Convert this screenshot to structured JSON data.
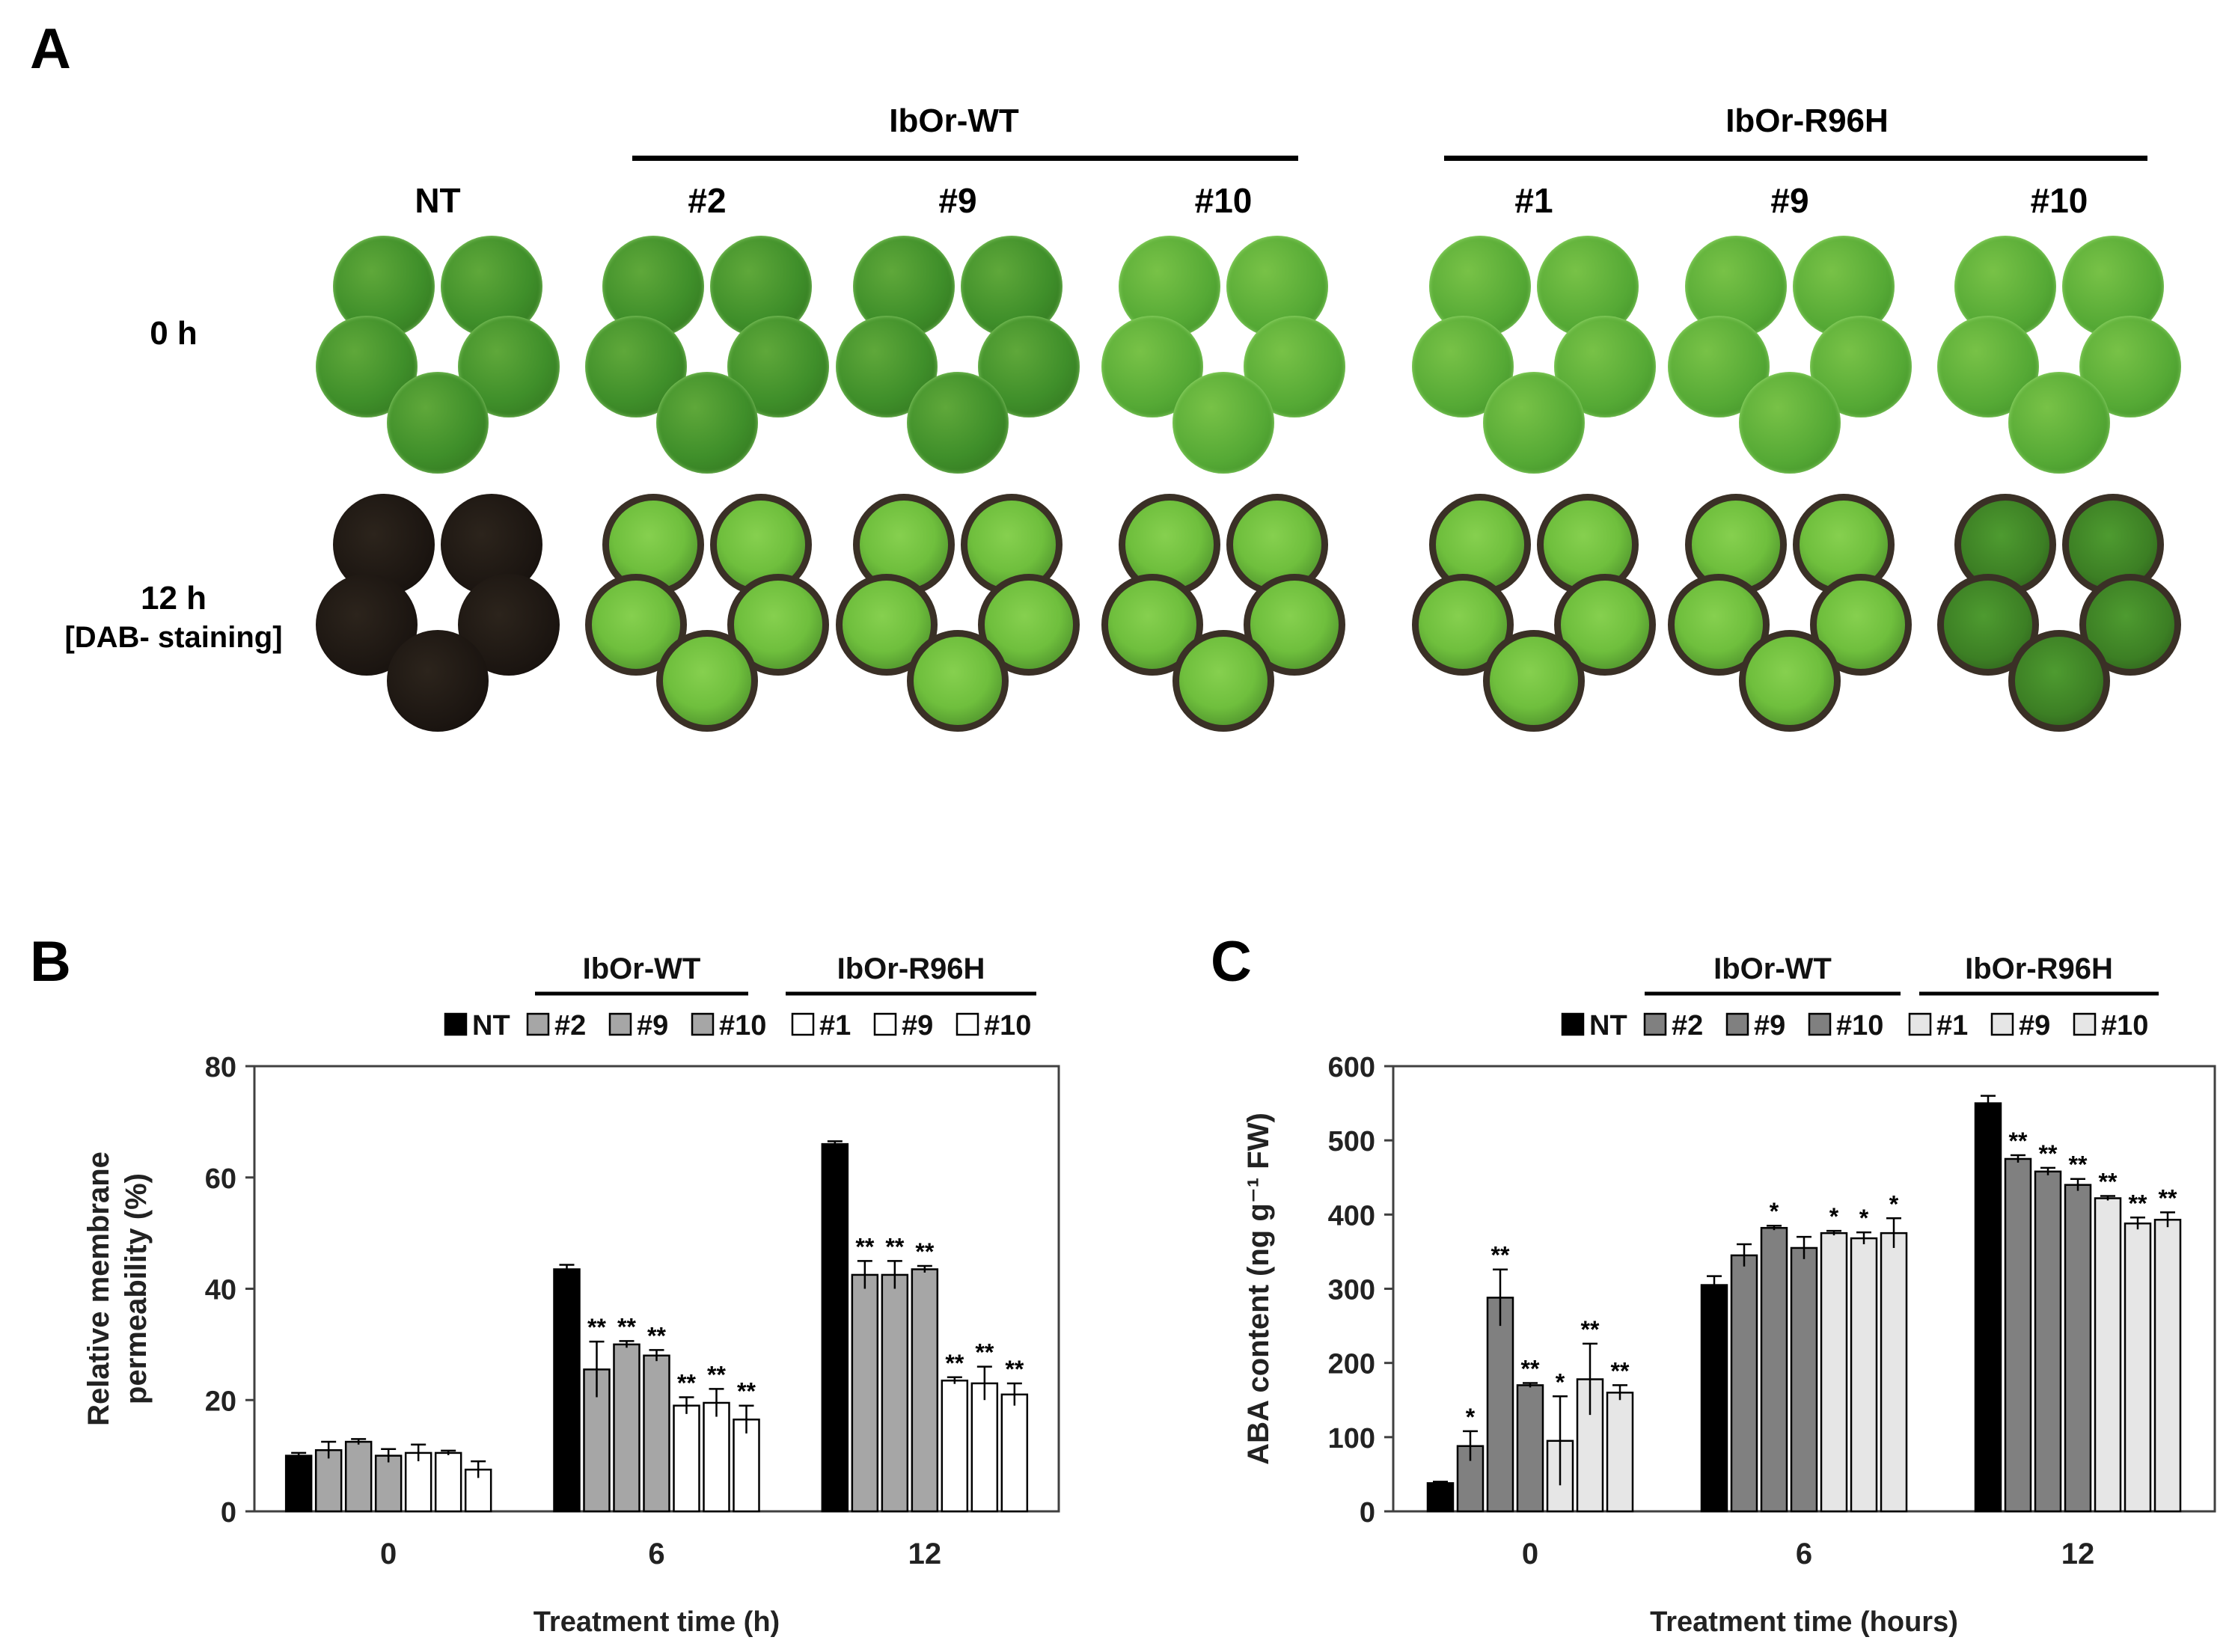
{
  "panel_a": {
    "label": "A",
    "group_wt": "IbOr-WT",
    "group_r96h": "IbOr-R96H",
    "columns": [
      "NT",
      "#2",
      "#9",
      "#10",
      "#1",
      "#9",
      "#10"
    ],
    "row_0h": "0 h",
    "row_12h": "12 h",
    "row_12h_sub": "[DAB- staining]"
  },
  "colors": {
    "NT": "#000000",
    "WT_B": "#a6a6a6",
    "R96H_B": "#ffffff",
    "WT_C": "#808080",
    "R96H_C": "#e6e6e6"
  },
  "chart_data": [
    {
      "type": "bar",
      "panel": "B",
      "group_labels": [
        "IbOr-WT",
        "IbOr-R96H"
      ],
      "legend": [
        "NT",
        "#2",
        "#9",
        "#10",
        "#1",
        "#9",
        "#10"
      ],
      "categories": [
        "0",
        "6",
        "12"
      ],
      "xlabel": "Treatment time (h)",
      "ylabel": "Relative membrane permeability (%)",
      "ylim": [
        0,
        80
      ],
      "yticks": [
        "0",
        "20",
        "40",
        "60",
        "80"
      ],
      "series": [
        {
          "name": "NT",
          "group": "NT",
          "values": [
            10,
            43.5,
            66
          ],
          "errors": [
            0.5,
            0.8,
            0.5
          ],
          "marks": [
            "",
            "",
            ""
          ]
        },
        {
          "name": "#2",
          "group": "WT",
          "values": [
            11,
            25.5,
            42.5
          ],
          "errors": [
            1.5,
            5,
            2.5
          ],
          "marks": [
            "",
            "**",
            "**"
          ]
        },
        {
          "name": "#9",
          "group": "WT",
          "values": [
            12.5,
            30,
            42.5
          ],
          "errors": [
            0.5,
            0.6,
            2.5
          ],
          "marks": [
            "",
            "**",
            "**"
          ]
        },
        {
          "name": "#10",
          "group": "WT",
          "values": [
            10,
            28,
            43.5
          ],
          "errors": [
            1.2,
            1,
            0.6
          ],
          "marks": [
            "",
            "**",
            "**"
          ]
        },
        {
          "name": "#1",
          "group": "R96H",
          "values": [
            10.5,
            19,
            23.5
          ],
          "errors": [
            1.5,
            1.5,
            0.6
          ],
          "marks": [
            "",
            "**",
            "**"
          ]
        },
        {
          "name": "#9",
          "group": "R96H",
          "values": [
            10.5,
            19.5,
            23
          ],
          "errors": [
            0.4,
            2.5,
            3
          ],
          "marks": [
            "",
            "**",
            "**"
          ]
        },
        {
          "name": "#10",
          "group": "R96H",
          "values": [
            7.5,
            16.5,
            21
          ],
          "errors": [
            1.5,
            2.5,
            2
          ],
          "marks": [
            "",
            "**",
            "**"
          ]
        }
      ]
    },
    {
      "type": "bar",
      "panel": "C",
      "group_labels": [
        "IbOr-WT",
        "IbOr-R96H"
      ],
      "legend": [
        "NT",
        "#2",
        "#9",
        "#10",
        "#1",
        "#9",
        "#10"
      ],
      "categories": [
        "0",
        "6",
        "12"
      ],
      "xlabel": "Treatment time (hours)",
      "ylabel": "ABA content (ng g⁻¹ FW)",
      "ylim": [
        0,
        600
      ],
      "yticks": [
        "0",
        "100",
        "200",
        "300",
        "400",
        "500",
        "600"
      ],
      "series": [
        {
          "name": "NT",
          "group": "NT",
          "values": [
            38,
            305,
            550
          ],
          "errors": [
            2,
            12,
            10
          ],
          "marks": [
            "",
            "",
            ""
          ]
        },
        {
          "name": "#2",
          "group": "WT",
          "values": [
            88,
            345,
            475
          ],
          "errors": [
            20,
            15,
            5
          ],
          "marks": [
            "*",
            "",
            "**"
          ]
        },
        {
          "name": "#9",
          "group": "WT",
          "values": [
            288,
            382,
            458
          ],
          "errors": [
            38,
            3,
            5
          ],
          "marks": [
            "**",
            "*",
            "**"
          ]
        },
        {
          "name": "#10",
          "group": "WT",
          "values": [
            170,
            355,
            440
          ],
          "errors": [
            3,
            15,
            8
          ],
          "marks": [
            "**",
            "",
            "**"
          ]
        },
        {
          "name": "#1",
          "group": "R96H",
          "values": [
            95,
            375,
            422
          ],
          "errors": [
            60,
            3,
            3
          ],
          "marks": [
            "*",
            "*",
            "**"
          ]
        },
        {
          "name": "#9",
          "group": "R96H",
          "values": [
            178,
            368,
            388
          ],
          "errors": [
            48,
            8,
            8
          ],
          "marks": [
            "**",
            "*",
            "**"
          ]
        },
        {
          "name": "#10",
          "group": "R96H",
          "values": [
            160,
            375,
            393
          ],
          "errors": [
            10,
            20,
            10
          ],
          "marks": [
            "**",
            "*",
            "**"
          ]
        }
      ]
    }
  ]
}
